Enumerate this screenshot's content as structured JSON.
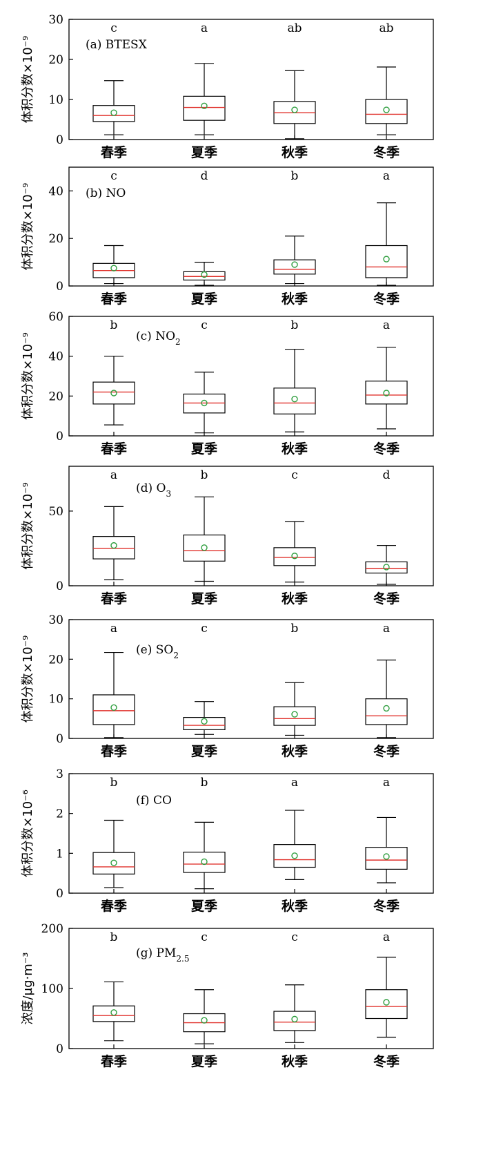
{
  "chart_data": [
    {
      "type": "box",
      "panel_label": "(a) BTESX",
      "ylabel": "体积分数×10⁻⁹",
      "ylim": [
        0,
        30
      ],
      "yticks": [
        0,
        10,
        20,
        30
      ],
      "categories": [
        "春季",
        "夏季",
        "秋季",
        "冬季"
      ],
      "letters": [
        "c",
        "a",
        "ab",
        "ab"
      ],
      "boxes": [
        {
          "whisker_low": 1.2,
          "q1": 4.5,
          "median": 6.0,
          "q3": 8.5,
          "whisker_high": 14.7,
          "mean": 6.7
        },
        {
          "whisker_low": 1.2,
          "q1": 4.8,
          "median": 8.0,
          "q3": 10.8,
          "whisker_high": 19.0,
          "mean": 8.4
        },
        {
          "whisker_low": 0.2,
          "q1": 4.0,
          "median": 6.7,
          "q3": 9.5,
          "whisker_high": 17.2,
          "mean": 7.4
        },
        {
          "whisker_low": 1.2,
          "q1": 4.0,
          "median": 6.3,
          "q3": 10.0,
          "whisker_high": 18.1,
          "mean": 7.4
        }
      ]
    },
    {
      "type": "box",
      "panel_label": "(b) NO",
      "ylabel": "体积分数×10⁻⁹",
      "ylim": [
        0,
        50
      ],
      "yticks": [
        0,
        20,
        40
      ],
      "categories": [
        "春季",
        "夏季",
        "秋季",
        "冬季"
      ],
      "letters": [
        "c",
        "d",
        "b",
        "a"
      ],
      "boxes": [
        {
          "whisker_low": 1.0,
          "q1": 3.5,
          "median": 6.5,
          "q3": 9.5,
          "whisker_high": 17.0,
          "mean": 7.5
        },
        {
          "whisker_low": 0.3,
          "q1": 2.5,
          "median": 4.0,
          "q3": 6.0,
          "whisker_high": 10.0,
          "mean": 4.8
        },
        {
          "whisker_low": 1.0,
          "q1": 5.0,
          "median": 7.0,
          "q3": 11.0,
          "whisker_high": 21.0,
          "mean": 9.0
        },
        {
          "whisker_low": 0.3,
          "q1": 3.5,
          "median": 8.0,
          "q3": 17.0,
          "whisker_high": 35.0,
          "mean": 11.3
        }
      ]
    },
    {
      "type": "box",
      "panel_label": "(c) NO",
      "panel_label_sub": "2",
      "ylabel": "体积分数×10⁻⁹",
      "ylim": [
        0,
        60
      ],
      "yticks": [
        0,
        20,
        40,
        60
      ],
      "categories": [
        "春季",
        "夏季",
        "秋季",
        "冬季"
      ],
      "letters": [
        "b",
        "c",
        "b",
        "a"
      ],
      "boxes": [
        {
          "whisker_low": 5.5,
          "q1": 16.0,
          "median": 22.0,
          "q3": 27.0,
          "whisker_high": 40.0,
          "mean": 21.5
        },
        {
          "whisker_low": 1.5,
          "q1": 11.5,
          "median": 16.5,
          "q3": 21.0,
          "whisker_high": 32.0,
          "mean": 16.5
        },
        {
          "whisker_low": 2.0,
          "q1": 11.0,
          "median": 16.5,
          "q3": 24.0,
          "whisker_high": 43.5,
          "mean": 18.5
        },
        {
          "whisker_low": 3.5,
          "q1": 16.0,
          "median": 20.5,
          "q3": 27.5,
          "whisker_high": 44.5,
          "mean": 21.5
        }
      ]
    },
    {
      "type": "box",
      "panel_label": "(d) O",
      "panel_label_sub": "3",
      "ylabel": "体积分数×10⁻⁹",
      "ylim": [
        0,
        80
      ],
      "yticks": [
        0,
        50
      ],
      "categories": [
        "春季",
        "夏季",
        "秋季",
        "冬季"
      ],
      "letters": [
        "a",
        "b",
        "c",
        "d"
      ],
      "boxes": [
        {
          "whisker_low": 4.0,
          "q1": 18.0,
          "median": 25.0,
          "q3": 33.0,
          "whisker_high": 53.0,
          "mean": 27.0
        },
        {
          "whisker_low": 3.0,
          "q1": 16.5,
          "median": 23.5,
          "q3": 34.0,
          "whisker_high": 59.5,
          "mean": 25.5
        },
        {
          "whisker_low": 2.5,
          "q1": 13.5,
          "median": 19.0,
          "q3": 25.5,
          "whisker_high": 43.0,
          "mean": 20.0
        },
        {
          "whisker_low": 1.0,
          "q1": 8.5,
          "median": 11.5,
          "q3": 16.0,
          "whisker_high": 27.0,
          "mean": 12.5
        }
      ]
    },
    {
      "type": "box",
      "panel_label": "(e) SO",
      "panel_label_sub": "2",
      "ylabel": "体积分数×10⁻⁹",
      "ylim": [
        0,
        30
      ],
      "yticks": [
        0,
        10,
        20,
        30
      ],
      "categories": [
        "春季",
        "夏季",
        "秋季",
        "冬季"
      ],
      "letters": [
        "a",
        "c",
        "b",
        "a"
      ],
      "boxes": [
        {
          "whisker_low": 0.2,
          "q1": 3.5,
          "median": 7.0,
          "q3": 11.0,
          "whisker_high": 21.7,
          "mean": 7.8
        },
        {
          "whisker_low": 1.0,
          "q1": 2.2,
          "median": 3.3,
          "q3": 5.3,
          "whisker_high": 9.3,
          "mean": 4.3
        },
        {
          "whisker_low": 0.8,
          "q1": 3.3,
          "median": 5.0,
          "q3": 8.0,
          "whisker_high": 14.1,
          "mean": 6.1
        },
        {
          "whisker_low": 0.2,
          "q1": 3.5,
          "median": 5.7,
          "q3": 10.0,
          "whisker_high": 19.8,
          "mean": 7.6
        }
      ]
    },
    {
      "type": "box",
      "panel_label": "(f) CO",
      "ylabel": "体积分数×10⁻⁶",
      "ylim": [
        0,
        3
      ],
      "yticks": [
        0,
        1,
        2,
        3
      ],
      "categories": [
        "春季",
        "夏季",
        "秋季",
        "冬季"
      ],
      "letters": [
        "b",
        "b",
        "a",
        "a"
      ],
      "boxes": [
        {
          "whisker_low": 0.14,
          "q1": 0.48,
          "median": 0.66,
          "q3": 1.02,
          "whisker_high": 1.83,
          "mean": 0.76
        },
        {
          "whisker_low": 0.11,
          "q1": 0.52,
          "median": 0.73,
          "q3": 1.03,
          "whisker_high": 1.78,
          "mean": 0.79
        },
        {
          "whisker_low": 0.34,
          "q1": 0.65,
          "median": 0.84,
          "q3": 1.22,
          "whisker_high": 2.08,
          "mean": 0.94
        },
        {
          "whisker_low": 0.26,
          "q1": 0.6,
          "median": 0.83,
          "q3": 1.15,
          "whisker_high": 1.9,
          "mean": 0.92
        }
      ]
    },
    {
      "type": "box",
      "panel_label": "(g) PM",
      "panel_label_sub": "2.5",
      "ylabel": "浓度/µg·m⁻³",
      "ylim": [
        0,
        200
      ],
      "yticks": [
        0,
        100,
        200
      ],
      "categories": [
        "春季",
        "夏季",
        "秋季",
        "冬季"
      ],
      "letters": [
        "b",
        "c",
        "c",
        "a"
      ],
      "boxes": [
        {
          "whisker_low": 13,
          "q1": 45,
          "median": 55,
          "q3": 71,
          "whisker_high": 111,
          "mean": 60
        },
        {
          "whisker_low": 8,
          "q1": 28,
          "median": 43,
          "q3": 58,
          "whisker_high": 98,
          "mean": 47
        },
        {
          "whisker_low": 10,
          "q1": 30,
          "median": 44,
          "q3": 62,
          "whisker_high": 106,
          "mean": 49
        },
        {
          "whisker_low": 19,
          "q1": 50,
          "median": 70,
          "q3": 98,
          "whisker_high": 152,
          "mean": 77
        }
      ]
    }
  ],
  "colors": {
    "median": "#e0312b",
    "mean_marker": "#2e9e3e",
    "box": "#000000",
    "axis": "#000000"
  }
}
